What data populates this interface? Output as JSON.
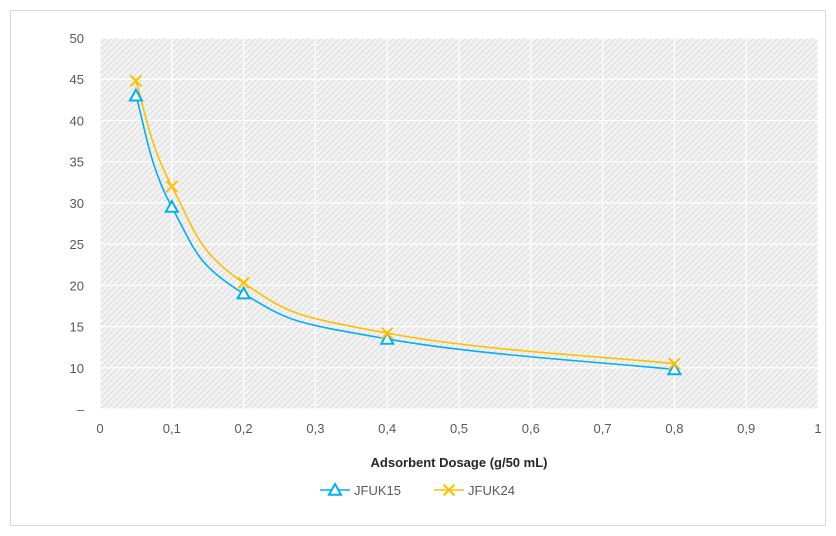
{
  "chart_data": {
    "type": "scatter",
    "xlabel": "Adsorbent Dosage (g/50 mL)",
    "ylabel": "",
    "title": "",
    "xlim": [
      0,
      1
    ],
    "ylim": [
      5,
      50
    ],
    "x_ticks": [
      "0",
      "0,1",
      "0,2",
      "0,3",
      "0,4",
      "0,5",
      "0,6",
      "0,7",
      "0,8",
      "0,9",
      "1"
    ],
    "y_ticks": [
      "–",
      "10",
      "15",
      "20",
      "25",
      "30",
      "35",
      "40",
      "45",
      "50"
    ],
    "y_tick_values": [
      5,
      10,
      15,
      20,
      25,
      30,
      35,
      40,
      45,
      50
    ],
    "grid": true,
    "smooth": true,
    "legend_position": "bottom",
    "series": [
      {
        "name": "JFUK15",
        "color": "#00b0f0",
        "marker": "triangle",
        "x": [
          0.05,
          0.1,
          0.2,
          0.4,
          0.8
        ],
        "y": [
          43,
          29.5,
          19,
          13.5,
          9.8
        ]
      },
      {
        "name": "JFUK24",
        "color": "#ffc000",
        "marker": "x",
        "x": [
          0.05,
          0.1,
          0.2,
          0.4,
          0.8
        ],
        "y": [
          44.8,
          32,
          20.3,
          14.2,
          10.5
        ]
      }
    ]
  }
}
